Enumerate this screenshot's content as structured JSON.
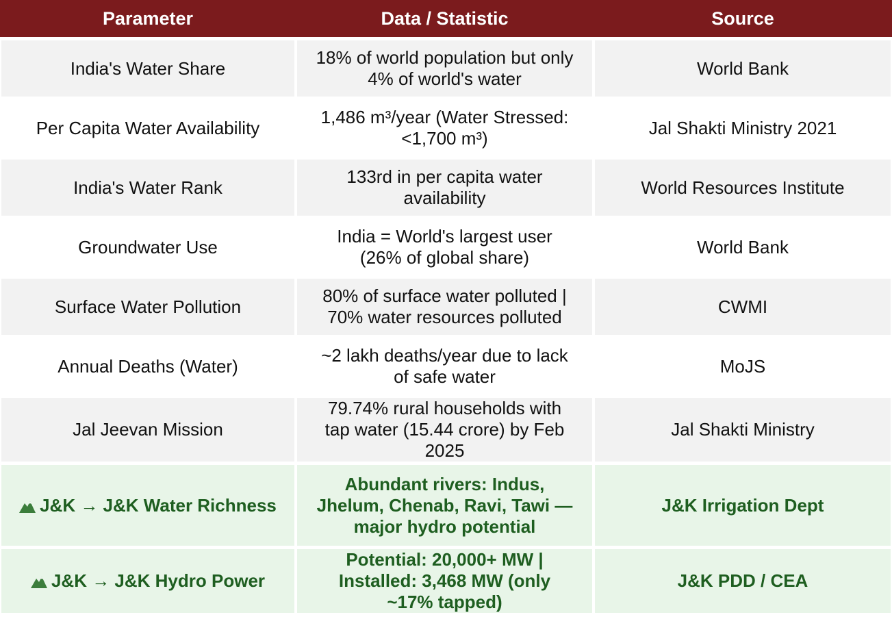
{
  "table": {
    "header": [
      "Parameter",
      "Data / Statistic",
      "Source"
    ],
    "rows": [
      [
        "India's Water Share",
        "18% of world population but only 4% of world's water",
        "World Bank"
      ],
      [
        "Per Capita Water Availability",
        "1,486 m³/year (Water Stressed: <1,700 m³)",
        "Jal Shakti Ministry 2021"
      ],
      [
        "India's Water Rank",
        "133rd in per capita water availability",
        "World Resources Institute"
      ],
      [
        "Groundwater Use",
        "India = World's largest user (26% of global share)",
        "World Bank"
      ],
      [
        "Surface Water Pollution",
        "80% of surface water polluted | 70% water resources polluted",
        "CWMI"
      ],
      [
        "Annual Deaths (Water)",
        "~2 lakh deaths/year due to lack of safe water",
        "MoJS"
      ],
      [
        "Jal Jeevan Mission",
        "79.74% rural households with tap water (15.44 crore) by Feb 2025",
        "Jal Shakti Ministry"
      ],
      [
        "J&K → J&K Water Richness",
        "Abundant rivers: Indus, Jhelum, Chenab, Ravi, Tawi — major hydro potential",
        "J&K Irrigation Dept"
      ],
      [
        "J&K → J&K Hydro Power",
        "Potential: 20,000+ MW | Installed: 3,468 MW (only ~17% tapped)",
        "J&K PDD / CEA"
      ]
    ]
  }
}
